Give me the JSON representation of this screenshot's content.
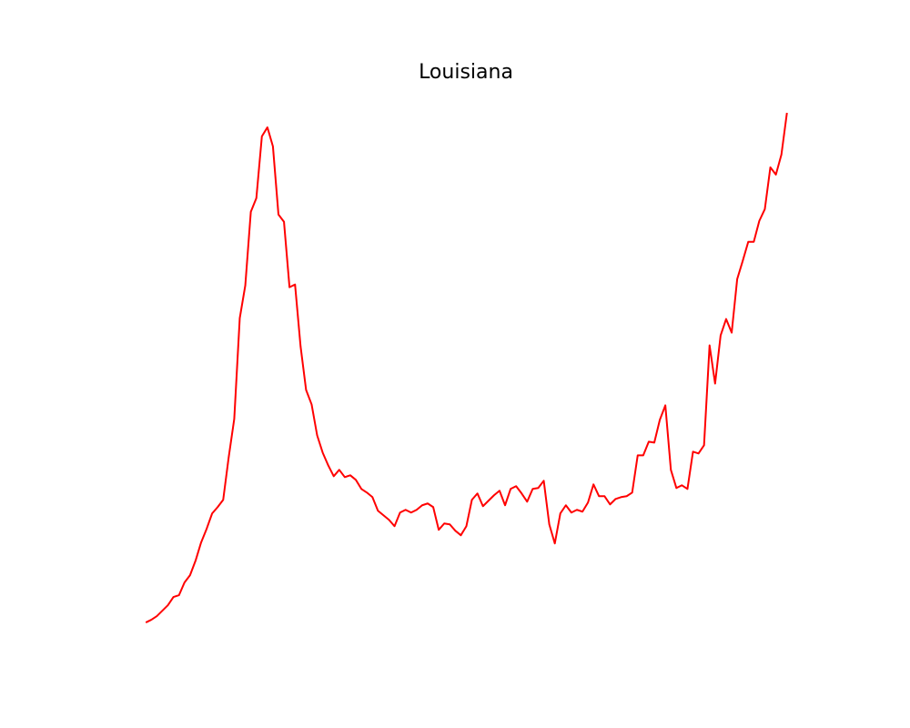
{
  "chart_data": {
    "type": "line",
    "title": "Louisiana",
    "color": "#ff0000",
    "ylim": [
      -28,
      589
    ],
    "values": [
      0,
      3,
      7,
      13,
      19,
      28,
      30,
      44,
      52,
      68,
      88,
      103,
      120,
      127,
      135,
      182,
      224,
      335,
      371,
      452,
      467,
      535,
      545,
      524,
      449,
      441,
      369,
      372,
      304,
      256,
      240,
      206,
      187,
      173,
      161,
      168,
      160,
      162,
      157,
      147,
      143,
      138,
      123,
      118,
      113,
      106,
      121,
      124,
      121,
      124,
      129,
      131,
      127,
      102,
      109,
      108,
      101,
      96,
      106,
      135,
      142,
      128,
      134,
      140,
      145,
      129,
      147,
      150,
      142,
      133,
      147,
      148,
      156,
      108,
      87,
      120,
      129,
      121,
      124,
      122,
      132,
      152,
      139,
      139,
      130,
      136,
      138,
      139,
      143,
      184,
      184,
      199,
      198,
      223,
      239,
      168,
      148,
      151,
      147,
      188,
      186,
      195,
      305,
      263,
      316,
      334,
      319,
      378,
      398,
      419,
      419,
      442,
      455,
      501,
      493,
      515,
      561
    ]
  }
}
